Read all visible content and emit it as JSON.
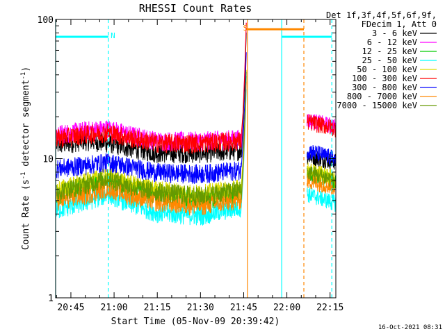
{
  "chart_data": {
    "type": "line",
    "title": "RHESSI Count Rates",
    "xlabel": "Start Time (05-Nov-09 20:39:42)",
    "ylabel_main": "Count Rate (s",
    "ylabel_sup": "-1",
    "ylabel_mid": " detector segment",
    "ylabel_sup2": "-1",
    "ylabel_end": ")",
    "yscale": "log",
    "ylim": [
      1,
      100
    ],
    "xlim_min": [
      39.7,
      137
    ],
    "x_ticks": [
      {
        "min": 45,
        "label": "20:45"
      },
      {
        "min": 60,
        "label": "21:00"
      },
      {
        "min": 75,
        "label": "21:15"
      },
      {
        "min": 90,
        "label": "21:30"
      },
      {
        "min": 105,
        "label": "21:45"
      },
      {
        "min": 120,
        "label": "22:00"
      },
      {
        "min": 135,
        "label": "22:15"
      }
    ],
    "y_ticks": [
      {
        "v": 1,
        "label": "1"
      },
      {
        "v": 10,
        "label": "10"
      },
      {
        "v": 100,
        "label": "100"
      }
    ],
    "legend_header": [
      "Det 1f,3f,4f,5f,6f,9f,",
      "FDecim 1, Att 0"
    ],
    "series": [
      {
        "name": "3 - 6 keV",
        "color": "#000000",
        "before": [
          [
            40,
            12.5
          ],
          [
            50,
            13.5
          ],
          [
            58,
            13
          ],
          [
            65,
            12
          ],
          [
            75,
            11
          ],
          [
            90,
            11
          ],
          [
            104,
            11.5
          ]
        ],
        "after": [
          [
            127,
            10.5
          ],
          [
            137,
            9.5
          ]
        ]
      },
      {
        "name": "6 - 12 keV",
        "color": "#ff00ff",
        "before": [
          [
            40,
            15
          ],
          [
            50,
            16
          ],
          [
            58,
            16.5
          ],
          [
            65,
            15
          ],
          [
            75,
            13.5
          ],
          [
            90,
            13.5
          ],
          [
            104,
            14
          ]
        ],
        "after": [
          [
            127,
            19
          ],
          [
            137,
            17
          ]
        ]
      },
      {
        "name": "12 - 25 keV",
        "color": "#00cc00",
        "before": [
          [
            40,
            5.5
          ],
          [
            50,
            6.3
          ],
          [
            58,
            7
          ],
          [
            65,
            6.2
          ],
          [
            75,
            5.5
          ],
          [
            90,
            5
          ],
          [
            104,
            5.6
          ]
        ],
        "after": [
          [
            127,
            7.8
          ],
          [
            137,
            6.8
          ]
        ]
      },
      {
        "name": "25 - 50 keV",
        "color": "#00ffff",
        "before": [
          [
            40,
            4.3
          ],
          [
            50,
            4.9
          ],
          [
            58,
            5.6
          ],
          [
            65,
            4.8
          ],
          [
            75,
            4.1
          ],
          [
            90,
            3.9
          ],
          [
            104,
            4.5
          ]
        ],
        "after": [
          [
            127,
            5.6
          ],
          [
            137,
            4.8
          ]
        ]
      },
      {
        "name": "50 - 100 keV",
        "color": "#dddd00",
        "before": [
          [
            40,
            6
          ],
          [
            50,
            6.8
          ],
          [
            58,
            7.5
          ],
          [
            65,
            6.7
          ],
          [
            75,
            6
          ],
          [
            90,
            5.6
          ],
          [
            104,
            6.2
          ]
        ],
        "after": [
          [
            127,
            8.3
          ],
          [
            137,
            7.3
          ]
        ]
      },
      {
        "name": "100 - 300 keV",
        "color": "#ff0000",
        "before": [
          [
            40,
            14
          ],
          [
            50,
            15
          ],
          [
            58,
            15.5
          ],
          [
            65,
            14.2
          ],
          [
            75,
            13
          ],
          [
            90,
            13
          ],
          [
            104,
            13.5
          ]
        ],
        "after": [
          [
            127,
            18.5
          ],
          [
            137,
            16.5
          ]
        ]
      },
      {
        "name": "300 - 800 keV",
        "color": "#0000ff",
        "before": [
          [
            40,
            8.5
          ],
          [
            50,
            9
          ],
          [
            58,
            9.5
          ],
          [
            65,
            8.8
          ],
          [
            75,
            8
          ],
          [
            90,
            7.8
          ],
          [
            104,
            8.3
          ]
        ],
        "after": [
          [
            127,
            11.5
          ],
          [
            137,
            10
          ]
        ]
      },
      {
        "name": "800 - 7000 keV",
        "color": "#ff8800",
        "before": [
          [
            40,
            5
          ],
          [
            50,
            5.5
          ],
          [
            58,
            6.2
          ],
          [
            65,
            5.5
          ],
          [
            75,
            4.9
          ],
          [
            90,
            4.6
          ],
          [
            104,
            5.1
          ]
        ],
        "after": [
          [
            127,
            7
          ],
          [
            137,
            6.2
          ]
        ]
      },
      {
        "name": "7000 - 15000 keV",
        "color": "#669900",
        "before": [
          [
            40,
            5.8
          ],
          [
            50,
            6.5
          ],
          [
            58,
            7.3
          ],
          [
            65,
            6.4
          ],
          [
            75,
            5.8
          ],
          [
            90,
            5.4
          ],
          [
            104,
            6
          ]
        ],
        "after": [
          [
            127,
            8
          ],
          [
            137,
            7
          ]
        ]
      }
    ],
    "spike": {
      "start_min": 104.2,
      "end_min": 106.3
    },
    "attenuator_segments": [
      {
        "label": "N",
        "color": "#00ffff",
        "y": 75,
        "x_start": 39.7,
        "x_end": 58,
        "label_min": 58.8
      },
      {
        "label": "S",
        "color": "#ff8800",
        "y": 85,
        "x_start": 106.3,
        "x_end": 125.9,
        "label_min": 104.8
      },
      {
        "label": "",
        "color": "#00ffff",
        "y": 75,
        "x_start": 118.2,
        "x_end": 135.6,
        "label_min": 0
      }
    ],
    "markers": [
      {
        "min": 39.7,
        "color": "#00ffff",
        "dash": false
      },
      {
        "min": 58,
        "color": "#00ffff",
        "dash": true
      },
      {
        "min": 106.3,
        "color": "#ff8800",
        "dash": false
      },
      {
        "min": 118.2,
        "color": "#00ffff",
        "dash": false
      },
      {
        "min": 125.9,
        "color": "#ff8800",
        "dash": true
      },
      {
        "min": 135.6,
        "color": "#00ffff",
        "dash": true
      }
    ],
    "timestamp": "16-Oct-2021 08:31"
  }
}
